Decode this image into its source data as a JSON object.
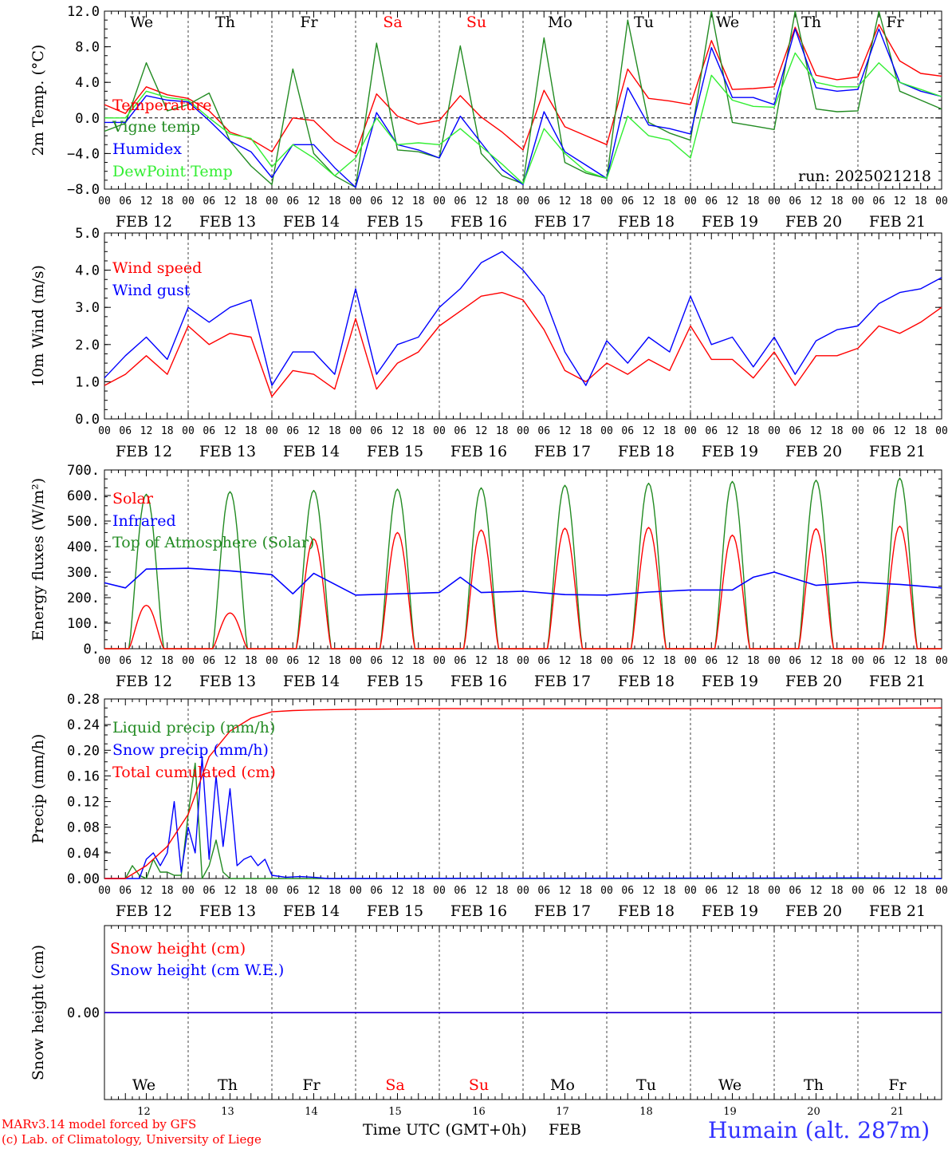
{
  "colors": {
    "red": "#ff0000",
    "green": "#228b22",
    "blue": "#0000ff",
    "lightgreen": "#32ee32",
    "axis": "#000000",
    "station": "#3333ff"
  },
  "x_hour_labels": [
    "00",
    "06",
    "12",
    "18"
  ],
  "x_final_label": "00",
  "date_labels": [
    "FEB 12",
    "FEB 13",
    "FEB 14",
    "FEB 15",
    "FEB 16",
    "FEB 17",
    "FEB 18",
    "FEB 19",
    "FEB 20",
    "FEB 21"
  ],
  "weekdays": [
    {
      "label": "We",
      "weekend": false
    },
    {
      "label": "Th",
      "weekend": false
    },
    {
      "label": "Fr",
      "weekend": false
    },
    {
      "label": "Sa",
      "weekend": true
    },
    {
      "label": "Su",
      "weekend": true
    },
    {
      "label": "Mo",
      "weekend": false
    },
    {
      "label": "Tu",
      "weekend": false
    },
    {
      "label": "We",
      "weekend": false
    },
    {
      "label": "Th",
      "weekend": false
    },
    {
      "label": "Fr",
      "weekend": false
    }
  ],
  "bottom_days": [
    "12",
    "13",
    "14",
    "15",
    "16",
    "17",
    "18",
    "19",
    "20",
    "21"
  ],
  "chart_data": [
    {
      "id": "temp",
      "type": "line",
      "ylabel": "2m Temp. (°C)",
      "ylim": [
        -8,
        12
      ],
      "yticks": [
        "12.0",
        "8.0",
        "4.0",
        "0.0",
        "−4.0",
        "−8.0"
      ],
      "tick_values": [
        12,
        8,
        4,
        0,
        -4,
        -8
      ],
      "zero_line": true,
      "annotation": "run: 2025021218",
      "x": [
        0,
        6,
        12,
        18,
        24,
        30,
        36,
        42,
        48,
        54,
        60,
        66,
        72,
        78,
        84,
        90,
        96,
        102,
        108,
        114,
        120,
        126,
        132,
        138,
        144,
        150,
        156,
        162,
        168,
        174,
        180,
        186,
        192,
        198,
        204,
        210,
        216,
        222,
        228,
        234,
        240
      ],
      "series": [
        {
          "name": "Temperature",
          "color": "red",
          "values": [
            1.5,
            0.5,
            3.5,
            2.6,
            2.2,
            0.8,
            -1.6,
            -2.4,
            -3.8,
            0.0,
            -0.3,
            -2.6,
            -4.0,
            2.7,
            0.2,
            -0.7,
            -0.3,
            2.5,
            0.1,
            -1.6,
            -3.6,
            3.1,
            -1.0,
            -2.0,
            -3.0,
            5.5,
            2.2,
            1.9,
            1.5,
            8.7,
            3.2,
            3.3,
            3.5,
            10.2,
            4.8,
            4.3,
            4.6,
            10.5,
            6.4,
            5.0,
            4.7
          ]
        },
        {
          "name": "Vigne temp",
          "color": "green",
          "values": [
            -1.5,
            -0.6,
            6.2,
            0.8,
            1.5,
            2.8,
            -2.6,
            -5.4,
            -7.5,
            5.5,
            -4.0,
            -6.5,
            -7.8,
            8.4,
            -3.6,
            -3.8,
            -4.5,
            8.1,
            -4.0,
            -6.5,
            -7.4,
            9.0,
            -5.0,
            -6.2,
            -6.8,
            11.0,
            -0.5,
            -1.7,
            -2.5,
            12.0,
            -0.5,
            -0.9,
            -1.3,
            12.0,
            1.0,
            0.7,
            0.8,
            12.0,
            3.0,
            2.0,
            1.0
          ]
        },
        {
          "name": "Humidex",
          "color": "blue",
          "values": [
            -0.5,
            -0.5,
            2.5,
            2.0,
            1.8,
            -0.3,
            -2.6,
            -3.8,
            -6.7,
            -3.0,
            -3.0,
            -5.6,
            -7.8,
            0.6,
            -3.0,
            -3.6,
            -4.5,
            0.2,
            -2.8,
            -5.8,
            -7.5,
            0.7,
            -3.8,
            -5.3,
            -6.8,
            3.4,
            -0.8,
            -1.2,
            -1.8,
            7.9,
            2.3,
            2.3,
            1.5,
            10.0,
            3.4,
            3.0,
            3.2,
            10.0,
            4.0,
            3.0,
            2.4
          ]
        },
        {
          "name": "DewPoint Temp",
          "color": "lightgreen",
          "values": [
            0.0,
            0.0,
            3.0,
            2.3,
            2.0,
            0.0,
            -1.8,
            -2.3,
            -5.5,
            -3.0,
            -4.5,
            -6.5,
            -4.5,
            0.0,
            -3.0,
            -2.8,
            -3.0,
            -1.2,
            -3.2,
            -5.2,
            -7.4,
            -1.2,
            -4.0,
            -6.0,
            -6.8,
            0.2,
            -2.0,
            -2.5,
            -4.5,
            4.8,
            2.0,
            1.3,
            1.2,
            7.3,
            4.0,
            3.5,
            3.5,
            6.2,
            4.0,
            3.2,
            2.4
          ]
        }
      ]
    },
    {
      "id": "wind",
      "type": "line",
      "ylabel": "10m Wind (m/s)",
      "ylim": [
        0,
        5
      ],
      "yticks": [
        "5.0",
        "4.0",
        "3.0",
        "2.0",
        "1.0",
        "0.0"
      ],
      "tick_values": [
        5,
        4,
        3,
        2,
        1,
        0
      ],
      "x": [
        0,
        6,
        12,
        18,
        24,
        30,
        36,
        42,
        48,
        54,
        60,
        66,
        72,
        78,
        84,
        90,
        96,
        102,
        108,
        114,
        120,
        126,
        132,
        138,
        144,
        150,
        156,
        162,
        168,
        174,
        180,
        186,
        192,
        198,
        204,
        210,
        216,
        222,
        228,
        234,
        240
      ],
      "series": [
        {
          "name": "Wind speed",
          "color": "red",
          "values": [
            0.9,
            1.2,
            1.7,
            1.2,
            2.5,
            2.0,
            2.3,
            2.2,
            0.6,
            1.3,
            1.2,
            0.8,
            2.7,
            0.8,
            1.5,
            1.8,
            2.5,
            2.9,
            3.3,
            3.4,
            3.2,
            2.4,
            1.3,
            1.0,
            1.5,
            1.2,
            1.6,
            1.3,
            2.5,
            1.6,
            1.6,
            1.1,
            1.8,
            0.9,
            1.7,
            1.7,
            1.9,
            2.5,
            2.3,
            2.6,
            3.0
          ]
        },
        {
          "name": "Wind gust",
          "color": "blue",
          "values": [
            1.1,
            1.7,
            2.2,
            1.6,
            3.0,
            2.6,
            3.0,
            3.2,
            0.9,
            1.8,
            1.8,
            1.2,
            3.5,
            1.2,
            2.0,
            2.2,
            3.0,
            3.5,
            4.2,
            4.5,
            4.0,
            3.3,
            1.8,
            0.9,
            2.1,
            1.5,
            2.2,
            1.8,
            3.3,
            2.0,
            2.2,
            1.4,
            2.2,
            1.2,
            2.1,
            2.4,
            2.5,
            3.1,
            3.4,
            3.5,
            3.8
          ]
        }
      ]
    },
    {
      "id": "flux",
      "type": "line",
      "ylabel": "Energy fluxes (W/m²)",
      "ylim": [
        0,
        700
      ],
      "yticks": [
        "700.",
        "600.",
        "500.",
        "400.",
        "300.",
        "200.",
        "100.",
        "0."
      ],
      "tick_values": [
        700,
        600,
        500,
        400,
        300,
        200,
        100,
        0
      ],
      "diurnal": {
        "sunrise_h": 7,
        "sunset_h": 17,
        "toa_peak": [
          605,
          615,
          620,
          625,
          630,
          640,
          648,
          655,
          660,
          668
        ],
        "solar_peak": [
          170,
          140,
          430,
          455,
          465,
          472,
          475,
          445,
          470,
          480
        ]
      },
      "series": [
        {
          "name": "Solar",
          "color": "red"
        },
        {
          "name": "Infrared",
          "color": "blue",
          "x": [
            0,
            6,
            12,
            24,
            36,
            48,
            54,
            60,
            72,
            84,
            96,
            102,
            108,
            120,
            132,
            144,
            156,
            168,
            180,
            186,
            192,
            204,
            216,
            228,
            240
          ],
          "values": [
            258,
            238,
            312,
            315,
            305,
            290,
            215,
            295,
            210,
            215,
            220,
            280,
            220,
            225,
            212,
            210,
            222,
            230,
            230,
            280,
            300,
            248,
            260,
            252,
            238
          ]
        },
        {
          "name": "Top of Atmosphere (Solar)",
          "color": "green"
        }
      ]
    },
    {
      "id": "precip",
      "type": "line",
      "ylabel": "Precip (mm/h)",
      "ylim": [
        0,
        0.28
      ],
      "yticks": [
        "0.28",
        "0.24",
        "0.20",
        "0.16",
        "0.12",
        "0.08",
        "0.04",
        "0.00"
      ],
      "tick_values": [
        0.28,
        0.24,
        0.2,
        0.16,
        0.12,
        0.08,
        0.04,
        0.0
      ],
      "series": [
        {
          "name": "Liquid precip (mm/h)",
          "color": "green",
          "x": [
            0,
            6,
            8,
            10,
            12,
            14,
            16,
            18,
            20,
            22,
            24,
            26,
            28,
            30,
            32,
            34,
            36,
            40,
            48,
            240
          ],
          "values": [
            0,
            0,
            0.02,
            0.005,
            0.0,
            0.03,
            0.01,
            0.01,
            0.005,
            0.005,
            0.1,
            0.18,
            0.0,
            0.02,
            0.06,
            0.01,
            0.0,
            0.0,
            0,
            0
          ]
        },
        {
          "name": "Snow precip (mm/h)",
          "color": "blue",
          "x": [
            0,
            6,
            10,
            12,
            14,
            16,
            18,
            20,
            22,
            24,
            26,
            28,
            30,
            32,
            34,
            36,
            38,
            40,
            42,
            44,
            46,
            48,
            52,
            56,
            60,
            64,
            216,
            240
          ],
          "values": [
            0,
            0,
            0.0,
            0.03,
            0.04,
            0.02,
            0.04,
            0.12,
            0.01,
            0.08,
            0.04,
            0.19,
            0.03,
            0.16,
            0.05,
            0.14,
            0.02,
            0.03,
            0.035,
            0.02,
            0.03,
            0.005,
            0.002,
            0.003,
            0.002,
            0,
            0.001,
            0
          ]
        },
        {
          "name": "Total cumulated (cm)",
          "color": "red",
          "x": [
            0,
            6,
            12,
            18,
            24,
            30,
            36,
            42,
            48,
            54,
            60,
            72,
            96,
            192,
            240
          ],
          "values": [
            0,
            0,
            0.02,
            0.05,
            0.1,
            0.19,
            0.23,
            0.25,
            0.26,
            0.262,
            0.263,
            0.264,
            0.265,
            0.265,
            0.266
          ]
        }
      ]
    },
    {
      "id": "snow",
      "type": "line",
      "ylabel": "Snow height (cm)",
      "ylim": [
        -1,
        1
      ],
      "yticks": [
        "0.00"
      ],
      "tick_values": [
        0
      ],
      "series": [
        {
          "name": "Snow height (cm)",
          "color": "red",
          "x": [
            0,
            240
          ],
          "values": [
            0,
            0
          ]
        },
        {
          "name": "Snow height (cm W.E.)",
          "color": "blue",
          "x": [
            0,
            240
          ],
          "values": [
            0,
            0
          ]
        }
      ]
    }
  ],
  "footer": {
    "credit_1": "MARv3.14 model forced by GFS",
    "credit_2": "(c) Lab. of Climatology, University of Liege",
    "xlabel": "Time UTC (GMT+0h)",
    "month": "FEB",
    "station": "Humain (alt. 287m)"
  }
}
